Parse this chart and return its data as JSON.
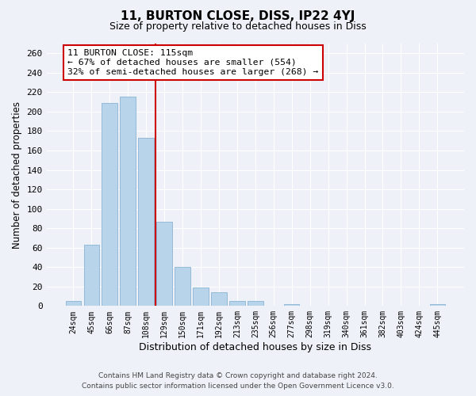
{
  "title": "11, BURTON CLOSE, DISS, IP22 4YJ",
  "subtitle": "Size of property relative to detached houses in Diss",
  "xlabel": "Distribution of detached houses by size in Diss",
  "ylabel": "Number of detached properties",
  "footnote1": "Contains HM Land Registry data © Crown copyright and database right 2024.",
  "footnote2": "Contains public sector information licensed under the Open Government Licence v3.0.",
  "bar_labels": [
    "24sqm",
    "45sqm",
    "66sqm",
    "87sqm",
    "108sqm",
    "129sqm",
    "150sqm",
    "171sqm",
    "192sqm",
    "213sqm",
    "235sqm",
    "256sqm",
    "277sqm",
    "298sqm",
    "319sqm",
    "340sqm",
    "361sqm",
    "382sqm",
    "403sqm",
    "424sqm",
    "445sqm"
  ],
  "bar_values": [
    5,
    63,
    209,
    215,
    173,
    87,
    40,
    19,
    14,
    5,
    5,
    0,
    2,
    0,
    0,
    0,
    0,
    0,
    0,
    0,
    2
  ],
  "bar_color": "#b8d4ea",
  "bar_edge_color": "#8ab4d4",
  "vline_x": 4.5,
  "vline_color": "#cc0000",
  "ylim": [
    0,
    270
  ],
  "yticks": [
    0,
    20,
    40,
    60,
    80,
    100,
    120,
    140,
    160,
    180,
    200,
    220,
    240,
    260
  ],
  "annotation_title": "11 BURTON CLOSE: 115sqm",
  "annotation_line1": "← 67% of detached houses are smaller (554)",
  "annotation_line2": "32% of semi-detached houses are larger (268) →",
  "annotation_box_color": "#ffffff",
  "annotation_box_edge": "#cc0000",
  "background_color": "#eef2f8"
}
